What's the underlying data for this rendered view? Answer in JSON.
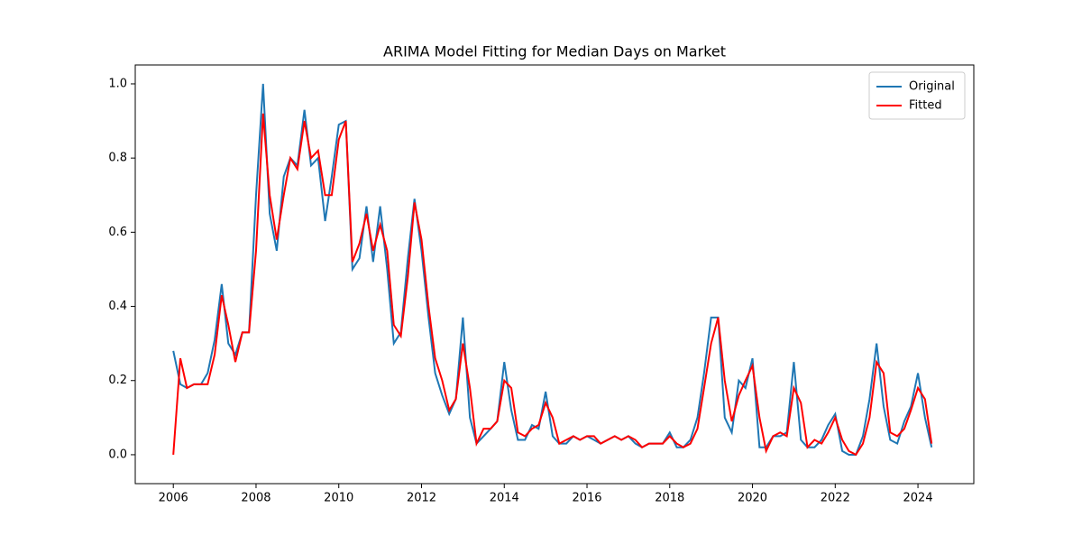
{
  "chart_data": {
    "type": "line",
    "title": "ARIMA Model Fitting for Median Days on Market",
    "x": [
      2006.0,
      2006.17,
      2006.33,
      2006.5,
      2006.67,
      2006.83,
      2007.0,
      2007.17,
      2007.33,
      2007.5,
      2007.67,
      2007.83,
      2008.0,
      2008.17,
      2008.33,
      2008.5,
      2008.67,
      2008.83,
      2009.0,
      2009.17,
      2009.33,
      2009.5,
      2009.67,
      2009.83,
      2010.0,
      2010.17,
      2010.33,
      2010.5,
      2010.67,
      2010.83,
      2011.0,
      2011.17,
      2011.33,
      2011.5,
      2011.67,
      2011.83,
      2012.0,
      2012.17,
      2012.33,
      2012.5,
      2012.67,
      2012.83,
      2013.0,
      2013.17,
      2013.33,
      2013.5,
      2013.67,
      2013.83,
      2014.0,
      2014.17,
      2014.33,
      2014.5,
      2014.67,
      2014.83,
      2015.0,
      2015.17,
      2015.33,
      2015.5,
      2015.67,
      2015.83,
      2016.0,
      2016.17,
      2016.33,
      2016.5,
      2016.67,
      2016.83,
      2017.0,
      2017.17,
      2017.33,
      2017.5,
      2017.67,
      2017.83,
      2018.0,
      2018.17,
      2018.33,
      2018.5,
      2018.67,
      2018.83,
      2019.0,
      2019.17,
      2019.33,
      2019.5,
      2019.67,
      2019.83,
      2020.0,
      2020.17,
      2020.33,
      2020.5,
      2020.67,
      2020.83,
      2021.0,
      2021.17,
      2021.33,
      2021.5,
      2021.67,
      2021.83,
      2022.0,
      2022.17,
      2022.33,
      2022.5,
      2022.67,
      2022.83,
      2023.0,
      2023.17,
      2023.33,
      2023.5,
      2023.67,
      2023.83,
      2024.0,
      2024.17,
      2024.33
    ],
    "series": [
      {
        "name": "Original",
        "color": "#1f77b4",
        "values": [
          0.28,
          0.19,
          0.18,
          0.19,
          0.19,
          0.22,
          0.31,
          0.46,
          0.3,
          0.27,
          0.33,
          0.33,
          0.7,
          1.0,
          0.65,
          0.55,
          0.75,
          0.8,
          0.78,
          0.93,
          0.78,
          0.8,
          0.63,
          0.75,
          0.89,
          0.9,
          0.5,
          0.53,
          0.67,
          0.52,
          0.67,
          0.5,
          0.3,
          0.33,
          0.53,
          0.69,
          0.55,
          0.37,
          0.22,
          0.16,
          0.11,
          0.15,
          0.37,
          0.1,
          0.03,
          0.05,
          0.07,
          0.09,
          0.25,
          0.12,
          0.04,
          0.04,
          0.08,
          0.07,
          0.17,
          0.05,
          0.03,
          0.03,
          0.05,
          0.04,
          0.05,
          0.04,
          0.03,
          0.04,
          0.05,
          0.04,
          0.05,
          0.03,
          0.02,
          0.03,
          0.03,
          0.03,
          0.06,
          0.02,
          0.02,
          0.04,
          0.1,
          0.22,
          0.37,
          0.37,
          0.1,
          0.06,
          0.2,
          0.18,
          0.26,
          0.02,
          0.02,
          0.05,
          0.05,
          0.06,
          0.25,
          0.04,
          0.02,
          0.02,
          0.04,
          0.08,
          0.11,
          0.01,
          0.0,
          0.0,
          0.05,
          0.15,
          0.3,
          0.13,
          0.04,
          0.03,
          0.09,
          0.13,
          0.22,
          0.1,
          0.02
        ]
      },
      {
        "name": "Fitted",
        "color": "#ff0000",
        "values": [
          0.0,
          0.26,
          0.18,
          0.19,
          0.19,
          0.19,
          0.27,
          0.43,
          0.35,
          0.25,
          0.33,
          0.33,
          0.55,
          0.92,
          0.7,
          0.58,
          0.7,
          0.8,
          0.77,
          0.9,
          0.8,
          0.82,
          0.7,
          0.7,
          0.85,
          0.9,
          0.52,
          0.57,
          0.65,
          0.55,
          0.62,
          0.55,
          0.35,
          0.32,
          0.48,
          0.68,
          0.58,
          0.4,
          0.26,
          0.2,
          0.12,
          0.15,
          0.3,
          0.18,
          0.03,
          0.07,
          0.07,
          0.09,
          0.2,
          0.18,
          0.06,
          0.05,
          0.07,
          0.08,
          0.14,
          0.1,
          0.03,
          0.04,
          0.05,
          0.04,
          0.05,
          0.05,
          0.03,
          0.04,
          0.05,
          0.04,
          0.05,
          0.04,
          0.02,
          0.03,
          0.03,
          0.03,
          0.05,
          0.03,
          0.02,
          0.03,
          0.07,
          0.18,
          0.3,
          0.37,
          0.2,
          0.09,
          0.16,
          0.2,
          0.24,
          0.1,
          0.01,
          0.05,
          0.06,
          0.05,
          0.18,
          0.14,
          0.02,
          0.04,
          0.03,
          0.06,
          0.1,
          0.04,
          0.01,
          0.0,
          0.03,
          0.1,
          0.25,
          0.22,
          0.06,
          0.05,
          0.07,
          0.12,
          0.18,
          0.15,
          0.03
        ]
      }
    ],
    "xlim": [
      2005.08,
      2025.35
    ],
    "xticks": [
      2006,
      2008,
      2010,
      2012,
      2014,
      2016,
      2018,
      2020,
      2022,
      2024
    ],
    "ylim": [
      -0.078,
      1.051
    ],
    "yticks": [
      {
        "value": 0,
        "label": "0.0"
      },
      0.2,
      0.4,
      0.6,
      0.8,
      {
        "value": 1,
        "label": "1.0"
      }
    ],
    "legend": "upper right",
    "grid": false
  }
}
